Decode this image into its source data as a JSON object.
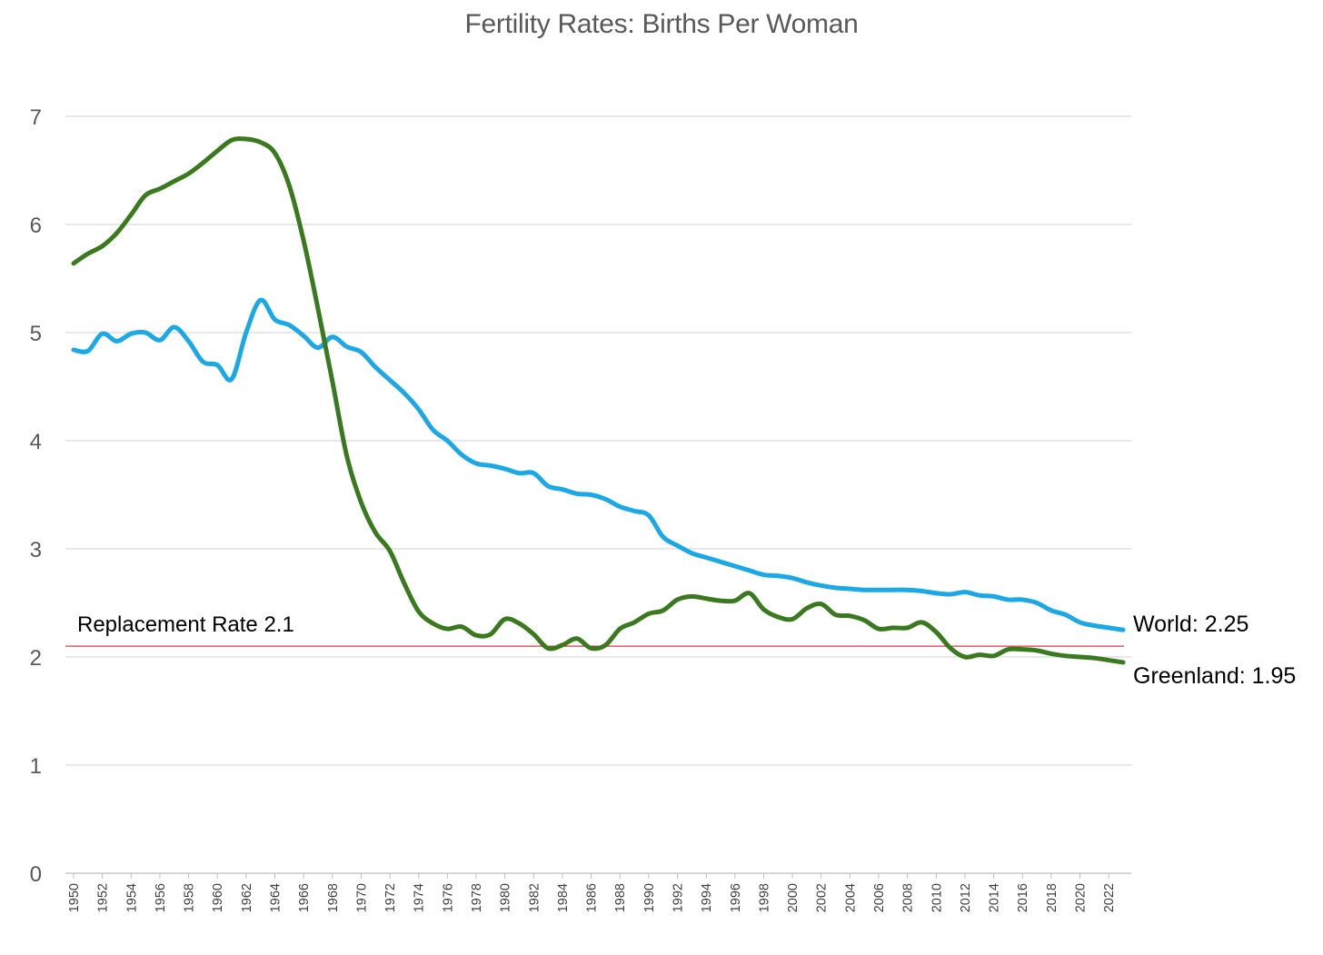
{
  "chart_data": {
    "type": "line",
    "title": "Fertility Rates: Births Per Woman",
    "xlabel": "",
    "ylabel": "",
    "ylim": [
      0,
      7
    ],
    "yticks": [
      0,
      1,
      2,
      3,
      4,
      5,
      6,
      7
    ],
    "xticks": [
      1950,
      1952,
      1954,
      1956,
      1958,
      1960,
      1962,
      1964,
      1966,
      1968,
      1970,
      1972,
      1974,
      1976,
      1978,
      1980,
      1982,
      1984,
      1986,
      1988,
      1990,
      1992,
      1994,
      1996,
      1998,
      2000,
      2002,
      2004,
      2006,
      2008,
      2010,
      2012,
      2014,
      2016,
      2018,
      2020,
      2022
    ],
    "grid": true,
    "x": [
      1950,
      1951,
      1952,
      1953,
      1954,
      1955,
      1956,
      1957,
      1958,
      1959,
      1960,
      1961,
      1962,
      1963,
      1964,
      1965,
      1966,
      1967,
      1968,
      1969,
      1970,
      1971,
      1972,
      1973,
      1974,
      1975,
      1976,
      1977,
      1978,
      1979,
      1980,
      1981,
      1982,
      1983,
      1984,
      1985,
      1986,
      1987,
      1988,
      1989,
      1990,
      1991,
      1992,
      1993,
      1994,
      1995,
      1996,
      1997,
      1998,
      1999,
      2000,
      2001,
      2002,
      2003,
      2004,
      2005,
      2006,
      2007,
      2008,
      2009,
      2010,
      2011,
      2012,
      2013,
      2014,
      2015,
      2016,
      2017,
      2018,
      2019,
      2020,
      2021,
      2022,
      2023
    ],
    "series": [
      {
        "name": "World",
        "color": "#1aa9e6",
        "end_label": "World: 2.25",
        "values": [
          4.84,
          4.83,
          4.99,
          4.92,
          4.99,
          5.0,
          4.93,
          5.05,
          4.92,
          4.73,
          4.7,
          4.57,
          5.0,
          5.3,
          5.12,
          5.07,
          4.97,
          4.86,
          4.96,
          4.87,
          4.82,
          4.68,
          4.56,
          4.44,
          4.29,
          4.1,
          4.0,
          3.87,
          3.79,
          3.77,
          3.74,
          3.7,
          3.7,
          3.58,
          3.55,
          3.51,
          3.5,
          3.46,
          3.39,
          3.35,
          3.31,
          3.11,
          3.03,
          2.96,
          2.92,
          2.88,
          2.84,
          2.8,
          2.76,
          2.75,
          2.73,
          2.69,
          2.66,
          2.64,
          2.63,
          2.62,
          2.62,
          2.62,
          2.62,
          2.61,
          2.59,
          2.58,
          2.6,
          2.57,
          2.56,
          2.53,
          2.53,
          2.5,
          2.43,
          2.39,
          2.32,
          2.29,
          2.27,
          2.25
        ]
      },
      {
        "name": "Greenland",
        "color": "#3a7a1e",
        "end_label": "Greenland: 1.95",
        "values": [
          5.64,
          5.73,
          5.8,
          5.92,
          6.09,
          6.27,
          6.33,
          6.4,
          6.47,
          6.57,
          6.68,
          6.78,
          6.79,
          6.76,
          6.66,
          6.36,
          5.85,
          5.22,
          4.55,
          3.86,
          3.43,
          3.15,
          2.98,
          2.68,
          2.42,
          2.31,
          2.26,
          2.28,
          2.2,
          2.21,
          2.35,
          2.31,
          2.21,
          2.08,
          2.11,
          2.17,
          2.08,
          2.11,
          2.26,
          2.32,
          2.4,
          2.43,
          2.53,
          2.56,
          2.54,
          2.52,
          2.52,
          2.59,
          2.44,
          2.37,
          2.35,
          2.45,
          2.49,
          2.39,
          2.38,
          2.34,
          2.26,
          2.27,
          2.27,
          2.32,
          2.23,
          2.08,
          2.0,
          2.02,
          2.01,
          2.07,
          2.07,
          2.06,
          2.03,
          2.01,
          2.0,
          1.99,
          1.97,
          1.95
        ]
      }
    ],
    "reference_line": {
      "value": 2.1,
      "label": "Replacement Rate 2.1",
      "color": "#e0393e"
    }
  }
}
